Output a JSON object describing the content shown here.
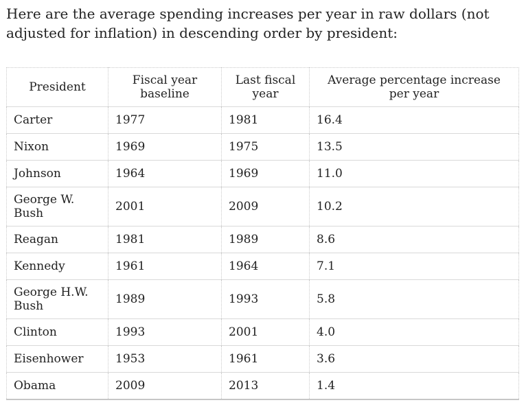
{
  "intro": {
    "text": "Here are the average spending increases per year in raw dollars (not adjusted for inflation) in descending order by president:"
  },
  "table": {
    "columns": [
      "President",
      "Fiscal year baseline",
      "Last fiscal year",
      "Average percentage increase per year"
    ],
    "rows": [
      {
        "president": "Carter",
        "baseline": "1977",
        "last_year": "1981",
        "increase": "16.4"
      },
      {
        "president": "Nixon",
        "baseline": "1969",
        "last_year": "1975",
        "increase": "13.5"
      },
      {
        "president": "Johnson",
        "baseline": "1964",
        "last_year": "1969",
        "increase": "11.0"
      },
      {
        "president": "George W. Bush",
        "baseline": "2001",
        "last_year": "2009",
        "increase": "10.2"
      },
      {
        "president": "Reagan",
        "baseline": "1981",
        "last_year": "1989",
        "increase": "8.6"
      },
      {
        "president": "Kennedy",
        "baseline": "1961",
        "last_year": "1964",
        "increase": "7.1"
      },
      {
        "president": "George H.W. Bush",
        "baseline": "1989",
        "last_year": "1993",
        "increase": "5.8"
      },
      {
        "president": "Clinton",
        "baseline": "1993",
        "last_year": "2001",
        "increase": "4.0"
      },
      {
        "president": "Eisenhower",
        "baseline": "1953",
        "last_year": "1961",
        "increase": "3.6"
      },
      {
        "president": "Obama",
        "baseline": "2009",
        "last_year": "2013",
        "increase": "1.4"
      }
    ]
  },
  "theme": {
    "text_color": "#222222",
    "border_dotted_color": "#c9c9c9",
    "border_solid_color": "#d9d9d9",
    "background": "#ffffff"
  }
}
